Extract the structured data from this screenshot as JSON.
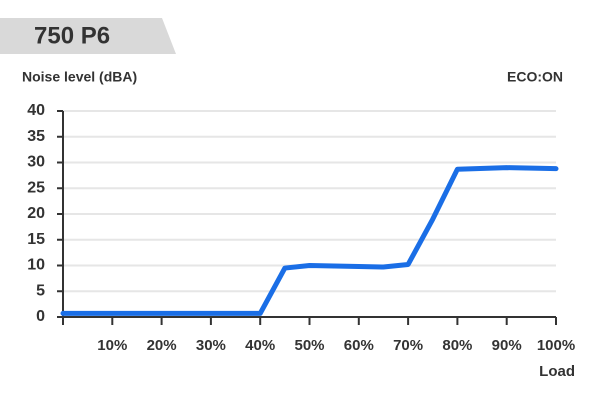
{
  "chart_data": {
    "type": "line",
    "badge": "750 P6",
    "y_label": "Noise level (dBA)",
    "mode_label": "ECO:ON",
    "x_label": "Load",
    "x": [
      0,
      40,
      45,
      50,
      60,
      65,
      70,
      75,
      80,
      90,
      100
    ],
    "series": [
      {
        "color": "#1a6ee6",
        "values": [
          0.7,
          0.7,
          9.5,
          10,
          9.8,
          9.7,
          10.2,
          19,
          28.7,
          29,
          28.8
        ]
      }
    ],
    "xlim": [
      0,
      100
    ],
    "xticks": [
      {
        "value": 10,
        "label": "10%"
      },
      {
        "value": 20,
        "label": "20%"
      },
      {
        "value": 30,
        "label": "30%"
      },
      {
        "value": 40,
        "label": "40%"
      },
      {
        "value": 50,
        "label": "50%"
      },
      {
        "value": 60,
        "label": "60%"
      },
      {
        "value": 70,
        "label": "70%"
      },
      {
        "value": 80,
        "label": "80%"
      },
      {
        "value": 90,
        "label": "90%"
      },
      {
        "value": 100,
        "label": "100%"
      }
    ],
    "ylim": [
      0,
      40
    ],
    "yticks": [
      0,
      5,
      10,
      15,
      20,
      25,
      30,
      35,
      40
    ],
    "grid": true
  }
}
